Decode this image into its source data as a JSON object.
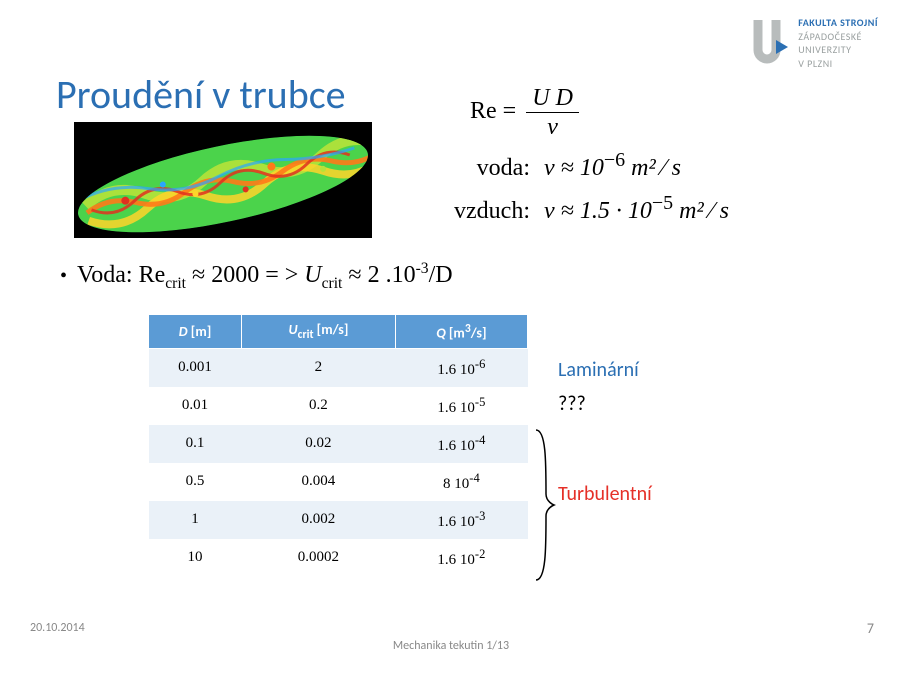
{
  "logo": {
    "line1": "FAKULTA STROJNÍ",
    "line2": "ZÁPADOČESKÉ",
    "line3": "UNIVERZITY",
    "line4": "V PLZNI",
    "mark_gray": "#b8bcbc",
    "mark_blue": "#2b6fb3"
  },
  "title": "Proudění v trubce",
  "equations": {
    "re_label": "Re",
    "num1": "U",
    "num2": "D",
    "den": "ν",
    "row1_label": "voda:",
    "row1_expr_prefix": "ν ≈ 10",
    "row1_exp": "−6",
    "row1_unit": " m² ⁄ s",
    "row2_label": "vzduch:",
    "row2_expr_prefix": "ν ≈ 1.5 · 10",
    "row2_exp": "−5",
    "row2_unit": " m² ⁄ s"
  },
  "bullet_text": "Voda: Re",
  "bullet_sub1": "crit",
  "bullet_mid": " ≈ 2000 = > ",
  "bullet_u": "U",
  "bullet_sub2": "crit",
  "bullet_tail_prefix": " ≈ 2 .10",
  "bullet_tail_exp": "-3",
  "bullet_tail_suffix": "/D",
  "table": {
    "columns_html": [
      "<i>D</i> [m]",
      "<i>U</i><sub>crit</sub> [m/s]",
      "<i>Q</i> [m<sup>3</sup>/s]"
    ],
    "rows": [
      [
        "0.001",
        "2",
        "1.6 10<sup>-6</sup>"
      ],
      [
        "0.01",
        "0.2",
        "1.6 10<sup>-5</sup>"
      ],
      [
        "0.1",
        "0.02",
        "1.6 10<sup>-4</sup>"
      ],
      [
        "0.5",
        "0.004",
        "8 10<sup>-4</sup>"
      ],
      [
        "1",
        "0.002",
        "1.6 10<sup>-3</sup>"
      ],
      [
        "10",
        "0.0002",
        "1.6 10<sup>-2</sup>"
      ]
    ],
    "header_bg": "#5b9bd5",
    "header_fg": "#ffffff",
    "row_odd_bg": "#eaf1f8",
    "row_even_bg": "#ffffff"
  },
  "labels": {
    "laminar": "Laminární",
    "unknown": "???",
    "turbulent": "Turbulentní"
  },
  "footer": {
    "date": "20.10.2014",
    "center": "Mechanika tekutin 1/13",
    "page": "7"
  },
  "cfd_image": {
    "background": "#000000",
    "colors": [
      "#1f8a3a",
      "#4bd34b",
      "#b6e23a",
      "#ffd42a",
      "#ff7a18",
      "#e03020",
      "#2aa6ff"
    ]
  }
}
